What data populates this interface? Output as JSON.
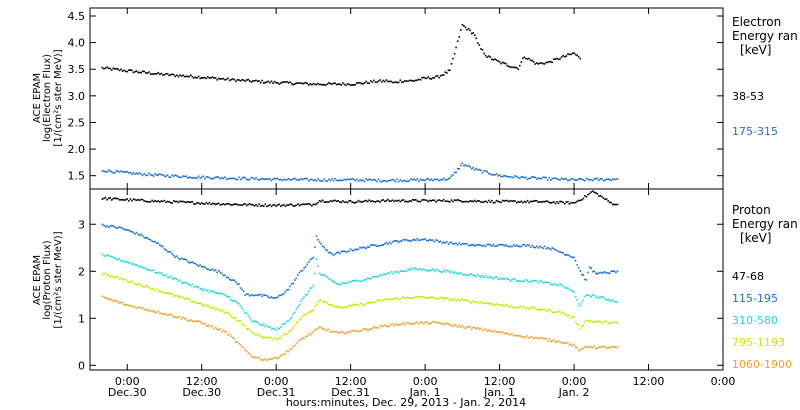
{
  "chart_data": [
    {
      "type": "scatter",
      "panel": "electron",
      "ylabel_lines": [
        "ACE EPAM",
        "log(Electron Flux)",
        "[1/(cm²s ster MeV)]"
      ],
      "legend_title_lines": [
        "Electron",
        "Energy ran",
        "[keV]"
      ],
      "ylim": [
        1.25,
        4.65
      ],
      "yticks": [
        1.5,
        2.0,
        2.5,
        3.0,
        3.5,
        4.0,
        4.5
      ],
      "ytick_labels": [
        "1.5",
        "2.0",
        "2.5",
        "3.0",
        "3.5",
        "4.0",
        "4.5"
      ],
      "x_unit": "hours since 2013-12-30 00:00",
      "series": [
        {
          "name": "38-53",
          "color": "#000000",
          "x": [
            -4,
            0,
            6,
            12,
            18,
            24,
            30,
            36,
            38,
            40,
            42,
            43,
            44,
            46,
            48,
            50,
            52,
            54,
            56,
            56.5,
            57,
            58,
            60,
            62,
            63,
            64,
            66,
            68,
            70,
            72,
            73
          ],
          "y": [
            3.52,
            3.47,
            3.4,
            3.35,
            3.29,
            3.25,
            3.22,
            3.22,
            3.24,
            3.27,
            3.28,
            3.24,
            3.28,
            3.28,
            3.33,
            3.35,
            3.47,
            4.33,
            4.15,
            3.98,
            3.88,
            3.74,
            3.63,
            3.55,
            3.52,
            3.74,
            3.6,
            3.63,
            3.72,
            3.8,
            3.7
          ]
        },
        {
          "name": "175-315",
          "color": "#1a6fd0",
          "x": [
            -4,
            0,
            6,
            12,
            18,
            24,
            30,
            36,
            42,
            48,
            52,
            54,
            56,
            60,
            64,
            68,
            72,
            78,
            79
          ],
          "y": [
            1.6,
            1.55,
            1.5,
            1.47,
            1.45,
            1.43,
            1.42,
            1.42,
            1.41,
            1.42,
            1.44,
            1.72,
            1.62,
            1.5,
            1.46,
            1.44,
            1.42,
            1.43,
            1.44
          ]
        }
      ]
    },
    {
      "type": "scatter",
      "panel": "proton",
      "ylabel_lines": [
        "ACE EPAM",
        "log(Proton Flux)",
        "[1/(cm²s ster MeV)]"
      ],
      "legend_title_lines": [
        "Proton",
        "Energy ran",
        "[keV]"
      ],
      "ylim": [
        -0.1,
        3.75
      ],
      "yticks": [
        0,
        1,
        2,
        3
      ],
      "ytick_labels": [
        "0",
        "1",
        "2",
        "3"
      ],
      "x_unit": "hours since 2013-12-30 00:00",
      "series": [
        {
          "name": "47-68",
          "color": "#000000",
          "x": [
            -4,
            0,
            6,
            12,
            18,
            24,
            30,
            31,
            36,
            42,
            48,
            54,
            60,
            66,
            72,
            74,
            75,
            76,
            78,
            79
          ],
          "y": [
            3.55,
            3.52,
            3.48,
            3.45,
            3.42,
            3.4,
            3.42,
            3.5,
            3.48,
            3.5,
            3.5,
            3.5,
            3.48,
            3.48,
            3.45,
            3.6,
            3.7,
            3.62,
            3.45,
            3.42
          ]
        },
        {
          "name": "115-195",
          "color": "#1a6fd0",
          "x": [
            -4,
            -1,
            2,
            5,
            8,
            12,
            15,
            18,
            19,
            21,
            24,
            26,
            28,
            30,
            30.5,
            31,
            33,
            36,
            40,
            44,
            48,
            52,
            56,
            60,
            64,
            68,
            70,
            72,
            73,
            74,
            74.5,
            75,
            76,
            78,
            79
          ],
          "y": [
            2.98,
            2.92,
            2.78,
            2.58,
            2.3,
            2.1,
            1.98,
            1.72,
            1.5,
            1.5,
            1.42,
            1.62,
            2.0,
            2.3,
            2.75,
            2.6,
            2.35,
            2.45,
            2.55,
            2.65,
            2.68,
            2.6,
            2.55,
            2.55,
            2.55,
            2.5,
            2.4,
            2.3,
            2.0,
            1.8,
            2.1,
            2.0,
            1.95,
            1.98,
            2.0
          ]
        },
        {
          "name": "310-580",
          "color": "#21d8d8",
          "x": [
            -4,
            0,
            6,
            12,
            16,
            18,
            20,
            22,
            24,
            26,
            28,
            30,
            30.5,
            31,
            34,
            38,
            42,
            46,
            50,
            54,
            58,
            62,
            66,
            70,
            72,
            73,
            74,
            76,
            79
          ],
          "y": [
            2.35,
            2.2,
            1.92,
            1.62,
            1.48,
            1.3,
            0.95,
            0.85,
            0.75,
            0.95,
            1.35,
            1.7,
            2.25,
            1.95,
            1.72,
            1.82,
            1.95,
            2.05,
            2.02,
            1.95,
            1.88,
            1.82,
            1.78,
            1.7,
            1.55,
            1.25,
            1.5,
            1.45,
            1.35
          ]
        },
        {
          "name": "795-1193",
          "color": "#c8e600",
          "x": [
            -4,
            0,
            6,
            12,
            16,
            18,
            20,
            22,
            24,
            26,
            28,
            30,
            31,
            34,
            38,
            42,
            46,
            50,
            54,
            58,
            62,
            66,
            70,
            72,
            73,
            74,
            76,
            79
          ],
          "y": [
            1.95,
            1.8,
            1.55,
            1.3,
            1.12,
            0.95,
            0.7,
            0.6,
            0.55,
            0.7,
            1.0,
            1.2,
            1.4,
            1.22,
            1.3,
            1.4,
            1.45,
            1.43,
            1.38,
            1.32,
            1.25,
            1.2,
            1.12,
            1.0,
            0.8,
            0.95,
            0.92,
            0.9
          ]
        },
        {
          "name": "1060-1900",
          "color": "#f0a030",
          "x": [
            -4,
            0,
            6,
            12,
            16,
            18,
            20,
            22,
            24,
            26,
            28,
            30,
            31,
            34,
            38,
            42,
            46,
            50,
            54,
            58,
            62,
            66,
            70,
            72,
            73,
            74,
            76,
            79
          ],
          "y": [
            1.45,
            1.28,
            1.1,
            0.9,
            0.7,
            0.45,
            0.2,
            0.12,
            0.15,
            0.3,
            0.55,
            0.7,
            0.8,
            0.68,
            0.75,
            0.85,
            0.9,
            0.9,
            0.82,
            0.75,
            0.65,
            0.58,
            0.5,
            0.42,
            0.3,
            0.4,
            0.38,
            0.38
          ]
        }
      ]
    }
  ],
  "x_axis": {
    "range_hours": [
      -6,
      96
    ],
    "ticks_hours": [
      0,
      12,
      24,
      36,
      48,
      60,
      72,
      84,
      96
    ],
    "time_labels": [
      "0:00",
      "12:00",
      "0:00",
      "12:00",
      "0:00",
      "12:00",
      "0:00",
      "12:00",
      "0:00"
    ],
    "date_labels": [
      "Dec.30",
      "Dec.30",
      "Dec.31",
      "Dec.31",
      "Jan. 1",
      "Jan. 1",
      "Jan. 2",
      "",
      ""
    ],
    "title": "hours:minutes, Dec. 29, 2013 - Jan. 2, 2014"
  }
}
